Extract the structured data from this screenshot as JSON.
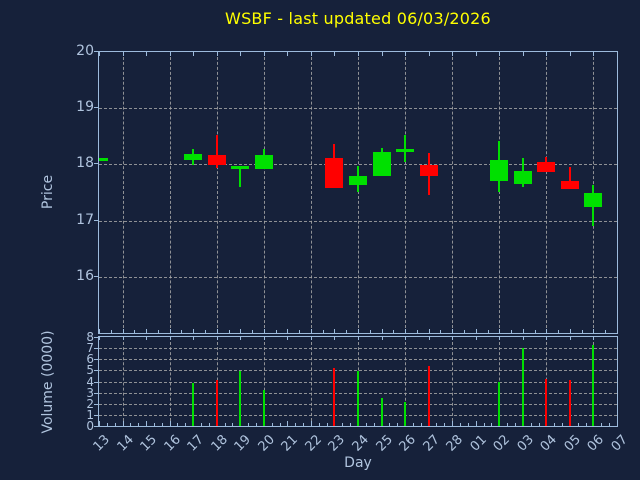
{
  "title": {
    "text": "WSBF - last updated 06/03/2026",
    "color": "#FFFF00"
  },
  "colors": {
    "background": "#16213A",
    "spine": "#9DBBDC",
    "tick_label": "#B0C4DE",
    "grid": "#A5A5A5",
    "up": "#00E000",
    "down": "#FF0000",
    "title": "#FFFF00"
  },
  "price_axis": {
    "label": "Price",
    "ticks": [
      "20",
      "19",
      "18",
      "17",
      "16"
    ],
    "tick_values": [
      20,
      19,
      18,
      17,
      16
    ],
    "range": [
      15,
      20
    ],
    "gridlines": [
      19,
      18,
      17,
      16
    ]
  },
  "volume_axis": {
    "label": "Volume (0000)",
    "ticks": [
      "8",
      "7",
      "6",
      "5",
      "4",
      "3",
      "2",
      "1",
      "0"
    ],
    "tick_values": [
      8,
      7,
      6,
      5,
      4,
      3,
      2,
      1,
      0
    ],
    "range": [
      0,
      8
    ],
    "gridlines": [
      7,
      6,
      5,
      4,
      3,
      2,
      1
    ]
  },
  "x_axis": {
    "label": "Day",
    "labels": [
      "13",
      "14",
      "15",
      "16",
      "17",
      "18",
      "19",
      "20",
      "21",
      "22",
      "23",
      "24",
      "25",
      "26",
      "27",
      "28",
      "01",
      "02",
      "03",
      "04",
      "05",
      "06",
      "07"
    ]
  },
  "chart_data": {
    "type": "candlestick+volume-bar",
    "title": "WSBF - last updated 06/03/2026",
    "xlabel": "Day",
    "ylabel_top": "Price",
    "ylabel_bottom": "Volume (0000)",
    "price_range": [
      15,
      20
    ],
    "volume_range": [
      0,
      8
    ],
    "grid": "dashed, vertical lines on alternate days",
    "legend": "none",
    "candles": [
      {
        "day": "13",
        "open": 18.07,
        "high": 18.1,
        "low": 18.06,
        "close": 18.09,
        "volume": 0
      },
      {
        "day": "17",
        "open": 18.07,
        "high": 18.28,
        "low": 17.99,
        "close": 18.19,
        "volume": 3.9
      },
      {
        "day": "18",
        "open": 18.17,
        "high": 18.53,
        "low": 17.94,
        "close": 17.99,
        "volume": 4.1
      },
      {
        "day": "19",
        "open": 17.92,
        "high": 17.97,
        "low": 17.6,
        "close": 17.94,
        "volume": 4.9
      },
      {
        "day": "20",
        "open": 17.91,
        "high": 18.28,
        "low": 17.91,
        "close": 18.17,
        "volume": 3.2
      },
      {
        "day": "23",
        "open": 18.12,
        "high": 18.36,
        "low": 17.58,
        "close": 17.58,
        "volume": 5.2
      },
      {
        "day": "24",
        "open": 17.63,
        "high": 17.97,
        "low": 17.51,
        "close": 17.79,
        "volume": 4.9
      },
      {
        "day": "25",
        "open": 17.79,
        "high": 18.29,
        "low": 17.79,
        "close": 18.22,
        "volume": 2.5
      },
      {
        "day": "26",
        "open": 18.22,
        "high": 18.53,
        "low": 18.04,
        "close": 18.24,
        "volume": 2.2
      },
      {
        "day": "27",
        "open": 17.99,
        "high": 18.21,
        "low": 17.46,
        "close": 17.8,
        "volume": 5.4
      },
      {
        "day": "02",
        "open": 17.7,
        "high": 18.41,
        "low": 17.51,
        "close": 18.07,
        "volume": 4.0
      },
      {
        "day": "03",
        "open": 17.66,
        "high": 18.12,
        "low": 17.6,
        "close": 17.89,
        "volume": 7.0
      },
      {
        "day": "04",
        "open": 18.04,
        "high": 18.14,
        "low": 17.86,
        "close": 17.86,
        "volume": 4.2
      },
      {
        "day": "05",
        "open": 17.71,
        "high": 17.95,
        "low": 17.56,
        "close": 17.56,
        "volume": 4.1
      },
      {
        "day": "06",
        "open": 17.25,
        "high": 17.63,
        "low": 16.9,
        "close": 17.49,
        "volume": 7.3
      }
    ]
  }
}
